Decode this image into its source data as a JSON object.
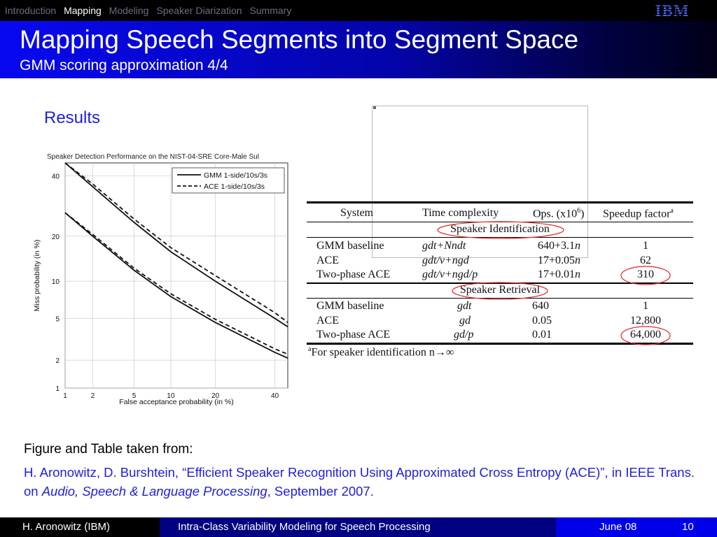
{
  "nav": {
    "items": [
      "Introduction",
      "Mapping",
      "Modeling",
      "Speaker Diarization",
      "Summary"
    ],
    "active": "Mapping"
  },
  "logo": {
    "text": "IBM"
  },
  "title": "Mapping Speech Segments into Segment Space",
  "subtitle": "GMM scoring approximation 4/4",
  "results_label": "Results",
  "colors": {
    "accent": "#1f1fd8",
    "title_gradient_start": "#0808f0",
    "footer_blue": "#0000e8",
    "footer_navy": "#000080",
    "highlight_circle": "#e03030"
  },
  "chart_data": {
    "type": "line",
    "title": "Speaker Detection Performance on the NIST-04-SRE Core-Male Sul",
    "xlabel": "False acceptance probability (in %)",
    "ylabel": "Miss probability (in %)",
    "x_scale": "normal-deviate",
    "y_scale": "normal-deviate",
    "x_ticks": [
      "1",
      "2",
      "5",
      "10",
      "20",
      "40"
    ],
    "y_ticks": [
      "1",
      "2",
      "5",
      "10",
      "20",
      "40"
    ],
    "xlim": [
      1,
      45
    ],
    "ylim": [
      1,
      45
    ],
    "grid": true,
    "legend_position": "top-right",
    "series": [
      {
        "name": "GMM 1-side/10s/3s",
        "style": "solid",
        "x": [
          1.0,
          2.0,
          5.0,
          10.0,
          20.0,
          40.0,
          45.0
        ],
        "y": [
          45.0,
          36.0,
          24.0,
          16.0,
          10.0,
          5.0,
          4.2
        ]
      },
      {
        "name": "ACE 1-side/10s/3s",
        "style": "dashed",
        "x": [
          1.0,
          2.0,
          5.0,
          10.0,
          20.0,
          40.0,
          45.0
        ],
        "y": [
          45.0,
          37.0,
          25.0,
          17.0,
          11.0,
          5.6,
          4.6
        ]
      },
      {
        "name": "",
        "style": "solid",
        "x": [
          1.0,
          2.0,
          5.0,
          10.0,
          20.0,
          40.0,
          45.0
        ],
        "y": [
          27.0,
          20.0,
          12.0,
          7.6,
          4.6,
          2.4,
          2.1
        ]
      },
      {
        "name": "",
        "style": "dashed",
        "x": [
          1.0,
          2.0,
          5.0,
          10.0,
          20.0,
          40.0,
          45.0
        ],
        "y": [
          27.0,
          20.5,
          12.4,
          8.0,
          4.9,
          2.6,
          2.3
        ]
      }
    ]
  },
  "table": {
    "headers": [
      "System",
      "Time complexity",
      "Ops. (x10",
      "6",
      ")",
      "Speedup factor",
      "a"
    ],
    "section1": "Speaker Identification",
    "rows1": [
      [
        "GMM baseline",
        "gdt+Nndt",
        "640+3.1",
        "n",
        "1"
      ],
      [
        "ACE",
        "gdt/v+ngd",
        "17+0.05",
        "n",
        "62"
      ],
      [
        "Two-phase ACE",
        "gdt/v+ngd/p",
        "17+0.01",
        "n",
        "310"
      ]
    ],
    "section2": "Speaker Retrieval",
    "rows2": [
      [
        "GMM baseline",
        "gdt",
        "640",
        "1"
      ],
      [
        "ACE",
        "gd",
        "0.05",
        "12,800"
      ],
      [
        "Two-phase ACE",
        "gd/p",
        "0.01",
        "64,000"
      ]
    ],
    "footnote_mark": "a",
    "footnote": "For speaker identification n→∞"
  },
  "source": {
    "heading": "Figure and Table taken from:",
    "line_a": "H. Aronowitz, D. Burshtein, “Efficient Speaker Recognition Using Approximated Cross Entropy (ACE)”,  in IEEE Trans. on ",
    "journal": "Audio, Speech & Language Processing",
    "line_b": ", September 2007."
  },
  "footer": {
    "author": "H. Aronowitz (IBM)",
    "talk": "Intra-Class Variability Modeling for Speech Processing",
    "date": "June 08",
    "page": "10"
  }
}
